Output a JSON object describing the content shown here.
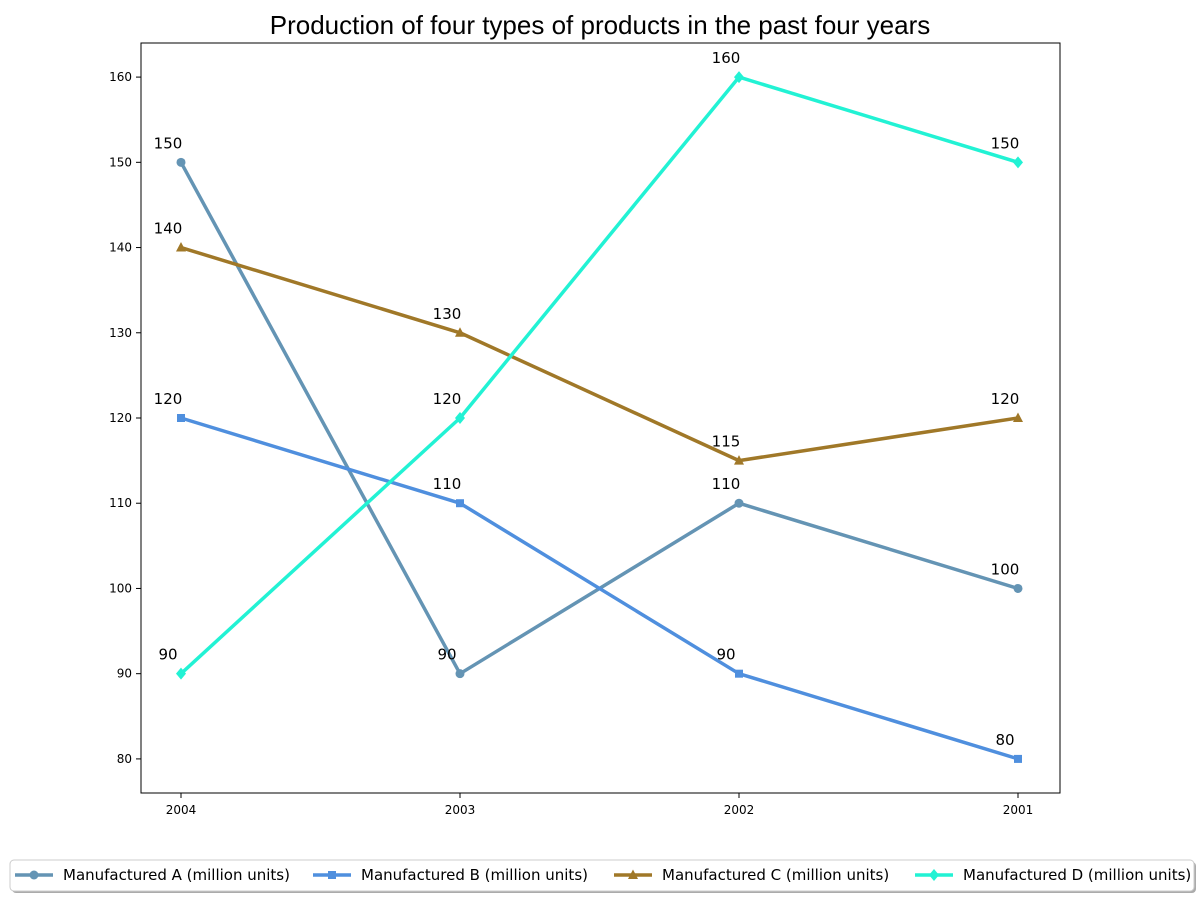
{
  "chart_data": {
    "type": "line",
    "title": "Production of four types of products in the past four years",
    "xlabel": "",
    "ylabel": "",
    "categories": [
      "2004",
      "2003",
      "2002",
      "2001"
    ],
    "ylim": [
      76,
      164
    ],
    "yticks": [
      80,
      90,
      100,
      110,
      120,
      130,
      140,
      150,
      160
    ],
    "grid": false,
    "legend_position": "bottom",
    "series": [
      {
        "name": "Manufactured A (million units)",
        "values": [
          150,
          90,
          110,
          100
        ],
        "color": "#6494b4",
        "marker": "circle"
      },
      {
        "name": "Manufactured B (million units)",
        "values": [
          120,
          110,
          90,
          80
        ],
        "color": "#4f8fde",
        "marker": "square"
      },
      {
        "name": "Manufactured C (million units)",
        "values": [
          140,
          130,
          115,
          120
        ],
        "color": "#a07828",
        "marker": "triangle"
      },
      {
        "name": "Manufactured D (million units)",
        "values": [
          90,
          120,
          160,
          150
        ],
        "color": "#22f2d4",
        "marker": "diamond"
      }
    ]
  }
}
